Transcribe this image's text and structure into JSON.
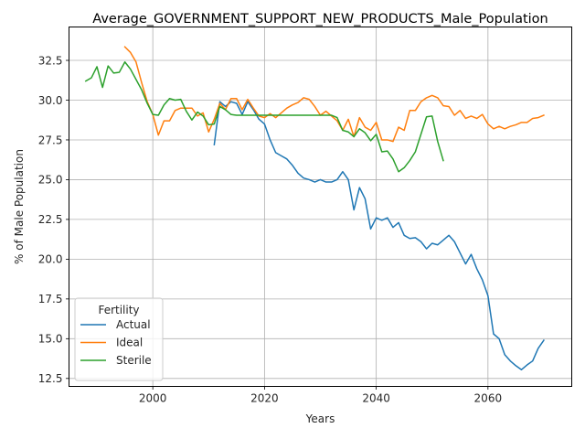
{
  "chart_data": {
    "type": "line",
    "title": "Average_GOVERNMENT_SUPPORT_NEW_PRODUCTS_Male_Population",
    "xlabel": "Years",
    "ylabel": "% of Male Population",
    "xlim": [
      1985,
      2075
    ],
    "ylim": [
      12.0,
      34.6
    ],
    "xticks": [
      2000,
      2020,
      2040,
      2060
    ],
    "yticks": [
      12.5,
      15.0,
      17.5,
      20.0,
      22.5,
      25.0,
      27.5,
      30.0,
      32.5
    ],
    "ytick_labels": [
      "12.5",
      "15.0",
      "17.5",
      "20.0",
      "22.5",
      "25.0",
      "27.5",
      "30.0",
      "32.5"
    ],
    "grid": true,
    "legend": {
      "title": "Fertility",
      "placement": "lower-left"
    },
    "series": [
      {
        "name": "Actual",
        "color": "#1f77b4",
        "points": [
          [
            2011,
            27.2
          ],
          [
            2012,
            29.9
          ],
          [
            2013,
            29.6
          ],
          [
            2014,
            29.9
          ],
          [
            2015,
            29.8
          ],
          [
            2016,
            29.1
          ],
          [
            2017,
            29.9
          ],
          [
            2018,
            29.4
          ],
          [
            2019,
            28.8
          ],
          [
            2020,
            28.5
          ],
          [
            2021,
            27.5
          ],
          [
            2022,
            26.7
          ],
          [
            2023,
            26.5
          ],
          [
            2024,
            26.3
          ],
          [
            2025,
            25.9
          ],
          [
            2026,
            25.4
          ],
          [
            2027,
            25.1
          ],
          [
            2028,
            25.0
          ],
          [
            2029,
            24.85
          ],
          [
            2030,
            25.0
          ],
          [
            2031,
            24.85
          ],
          [
            2032,
            24.85
          ],
          [
            2033,
            25.0
          ],
          [
            2034,
            25.5
          ],
          [
            2035,
            25.0
          ],
          [
            2036,
            23.1
          ],
          [
            2037,
            24.5
          ],
          [
            2038,
            23.8
          ],
          [
            2039,
            21.9
          ],
          [
            2040,
            22.6
          ],
          [
            2041,
            22.45
          ],
          [
            2042,
            22.6
          ],
          [
            2043,
            22.0
          ],
          [
            2044,
            22.3
          ],
          [
            2045,
            21.5
          ],
          [
            2046,
            21.3
          ],
          [
            2047,
            21.35
          ],
          [
            2048,
            21.1
          ],
          [
            2049,
            20.65
          ],
          [
            2050,
            21.0
          ],
          [
            2051,
            20.9
          ],
          [
            2052,
            21.2
          ],
          [
            2053,
            21.5
          ],
          [
            2054,
            21.1
          ],
          [
            2055,
            20.4
          ],
          [
            2056,
            19.7
          ],
          [
            2057,
            20.3
          ],
          [
            2058,
            19.4
          ],
          [
            2059,
            18.7
          ],
          [
            2060,
            17.7
          ],
          [
            2061,
            15.3
          ],
          [
            2062,
            15.0
          ],
          [
            2063,
            14.0
          ],
          [
            2064,
            13.6
          ],
          [
            2065,
            13.3
          ],
          [
            2066,
            13.05
          ],
          [
            2067,
            13.35
          ],
          [
            2068,
            13.6
          ],
          [
            2069,
            14.4
          ],
          [
            2070,
            14.9
          ]
        ]
      },
      {
        "name": "Ideal",
        "color": "#ff7f0e",
        "points": [
          [
            1995,
            33.35
          ],
          [
            1996,
            33.0
          ],
          [
            1997,
            32.4
          ],
          [
            1998,
            31.1
          ],
          [
            1999,
            29.9
          ],
          [
            2000,
            29.1
          ],
          [
            2001,
            27.8
          ],
          [
            2002,
            28.7
          ],
          [
            2003,
            28.7
          ],
          [
            2004,
            29.35
          ],
          [
            2005,
            29.5
          ],
          [
            2006,
            29.5
          ],
          [
            2007,
            29.5
          ],
          [
            2008,
            29.0
          ],
          [
            2009,
            29.2
          ],
          [
            2010,
            28.0
          ],
          [
            2011,
            28.8
          ],
          [
            2012,
            29.8
          ],
          [
            2013,
            29.4
          ],
          [
            2014,
            30.1
          ],
          [
            2015,
            30.1
          ],
          [
            2016,
            29.4
          ],
          [
            2017,
            30.05
          ],
          [
            2018,
            29.5
          ],
          [
            2019,
            29.0
          ],
          [
            2020,
            28.9
          ],
          [
            2021,
            29.15
          ],
          [
            2022,
            28.9
          ],
          [
            2023,
            29.2
          ],
          [
            2024,
            29.5
          ],
          [
            2025,
            29.7
          ],
          [
            2026,
            29.85
          ],
          [
            2027,
            30.15
          ],
          [
            2028,
            30.05
          ],
          [
            2029,
            29.6
          ],
          [
            2030,
            29.05
          ],
          [
            2031,
            29.3
          ],
          [
            2032,
            29.0
          ],
          [
            2033,
            28.7
          ],
          [
            2034,
            28.1
          ],
          [
            2035,
            28.8
          ],
          [
            2036,
            27.7
          ],
          [
            2037,
            28.9
          ],
          [
            2038,
            28.3
          ],
          [
            2039,
            28.1
          ],
          [
            2040,
            28.6
          ],
          [
            2041,
            27.5
          ],
          [
            2042,
            27.5
          ],
          [
            2043,
            27.4
          ],
          [
            2044,
            28.3
          ],
          [
            2045,
            28.1
          ],
          [
            2046,
            29.35
          ],
          [
            2047,
            29.35
          ],
          [
            2048,
            29.9
          ],
          [
            2049,
            30.15
          ],
          [
            2050,
            30.3
          ],
          [
            2051,
            30.15
          ],
          [
            2052,
            29.65
          ],
          [
            2053,
            29.6
          ],
          [
            2054,
            29.05
          ],
          [
            2055,
            29.35
          ],
          [
            2056,
            28.85
          ],
          [
            2057,
            29.0
          ],
          [
            2058,
            28.85
          ],
          [
            2059,
            29.1
          ],
          [
            2060,
            28.5
          ],
          [
            2061,
            28.2
          ],
          [
            2062,
            28.35
          ],
          [
            2063,
            28.2
          ],
          [
            2064,
            28.35
          ],
          [
            2065,
            28.45
          ],
          [
            2066,
            28.6
          ],
          [
            2067,
            28.6
          ],
          [
            2068,
            28.85
          ],
          [
            2069,
            28.9
          ],
          [
            2070,
            29.05
          ]
        ]
      },
      {
        "name": "Sterile",
        "color": "#2ca02c",
        "points": [
          [
            1988,
            31.2
          ],
          [
            1989,
            31.4
          ],
          [
            1990,
            32.1
          ],
          [
            1991,
            30.8
          ],
          [
            1992,
            32.15
          ],
          [
            1993,
            31.7
          ],
          [
            1994,
            31.75
          ],
          [
            1995,
            32.4
          ],
          [
            1996,
            31.95
          ],
          [
            1997,
            31.3
          ],
          [
            1998,
            30.65
          ],
          [
            1999,
            29.8
          ],
          [
            2000,
            29.1
          ],
          [
            2001,
            29.05
          ],
          [
            2002,
            29.7
          ],
          [
            2003,
            30.1
          ],
          [
            2004,
            30.0
          ],
          [
            2005,
            30.05
          ],
          [
            2006,
            29.3
          ],
          [
            2007,
            28.75
          ],
          [
            2008,
            29.25
          ],
          [
            2009,
            29.0
          ],
          [
            2010,
            28.45
          ],
          [
            2011,
            28.5
          ],
          [
            2012,
            29.6
          ],
          [
            2013,
            29.4
          ],
          [
            2014,
            29.1
          ],
          [
            2015,
            29.05
          ],
          [
            2016,
            29.05
          ],
          [
            2017,
            29.05
          ],
          [
            2018,
            29.05
          ],
          [
            2019,
            29.05
          ],
          [
            2020,
            29.05
          ],
          [
            2021,
            29.05
          ],
          [
            2022,
            29.05
          ],
          [
            2023,
            29.05
          ],
          [
            2024,
            29.05
          ],
          [
            2025,
            29.05
          ],
          [
            2026,
            29.05
          ],
          [
            2027,
            29.05
          ],
          [
            2028,
            29.05
          ],
          [
            2029,
            29.05
          ],
          [
            2030,
            29.05
          ],
          [
            2031,
            29.05
          ],
          [
            2032,
            29.05
          ],
          [
            2033,
            28.9
          ],
          [
            2034,
            28.1
          ],
          [
            2035,
            28.0
          ],
          [
            2036,
            27.7
          ],
          [
            2037,
            28.2
          ],
          [
            2038,
            27.95
          ],
          [
            2039,
            27.45
          ],
          [
            2040,
            27.85
          ],
          [
            2041,
            26.75
          ],
          [
            2042,
            26.8
          ],
          [
            2043,
            26.3
          ],
          [
            2044,
            25.5
          ],
          [
            2045,
            25.75
          ],
          [
            2046,
            26.2
          ],
          [
            2047,
            26.75
          ],
          [
            2048,
            27.85
          ],
          [
            2049,
            28.95
          ],
          [
            2050,
            29.0
          ],
          [
            2051,
            27.4
          ],
          [
            2052,
            26.2
          ]
        ]
      }
    ]
  }
}
